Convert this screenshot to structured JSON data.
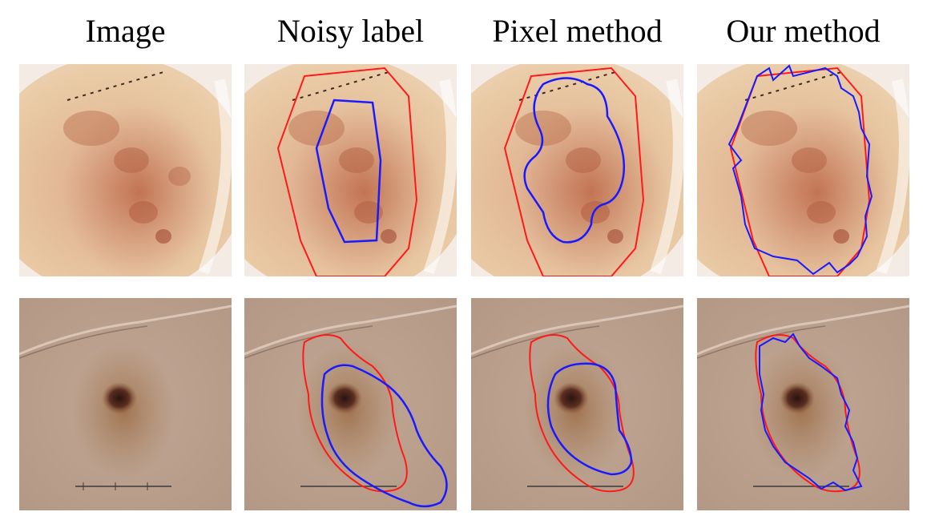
{
  "headers": [
    "Image",
    "Noisy label",
    "Pixel method",
    "Our method"
  ],
  "colors": {
    "noisy_label": "#ff1a1a",
    "prediction": "#1a1aff",
    "row1_skin": "#e6c19a",
    "row1_lesion": "#b8603f",
    "row2_skin": "#bba190",
    "row2_lesion": "#8e5a3a"
  },
  "rows": [
    {
      "name": "sample-1",
      "panels": [
        "image",
        "noisy-label",
        "pixel-method",
        "our-method"
      ]
    },
    {
      "name": "sample-2",
      "panels": [
        "image",
        "noisy-label",
        "pixel-method",
        "our-method"
      ]
    }
  ]
}
